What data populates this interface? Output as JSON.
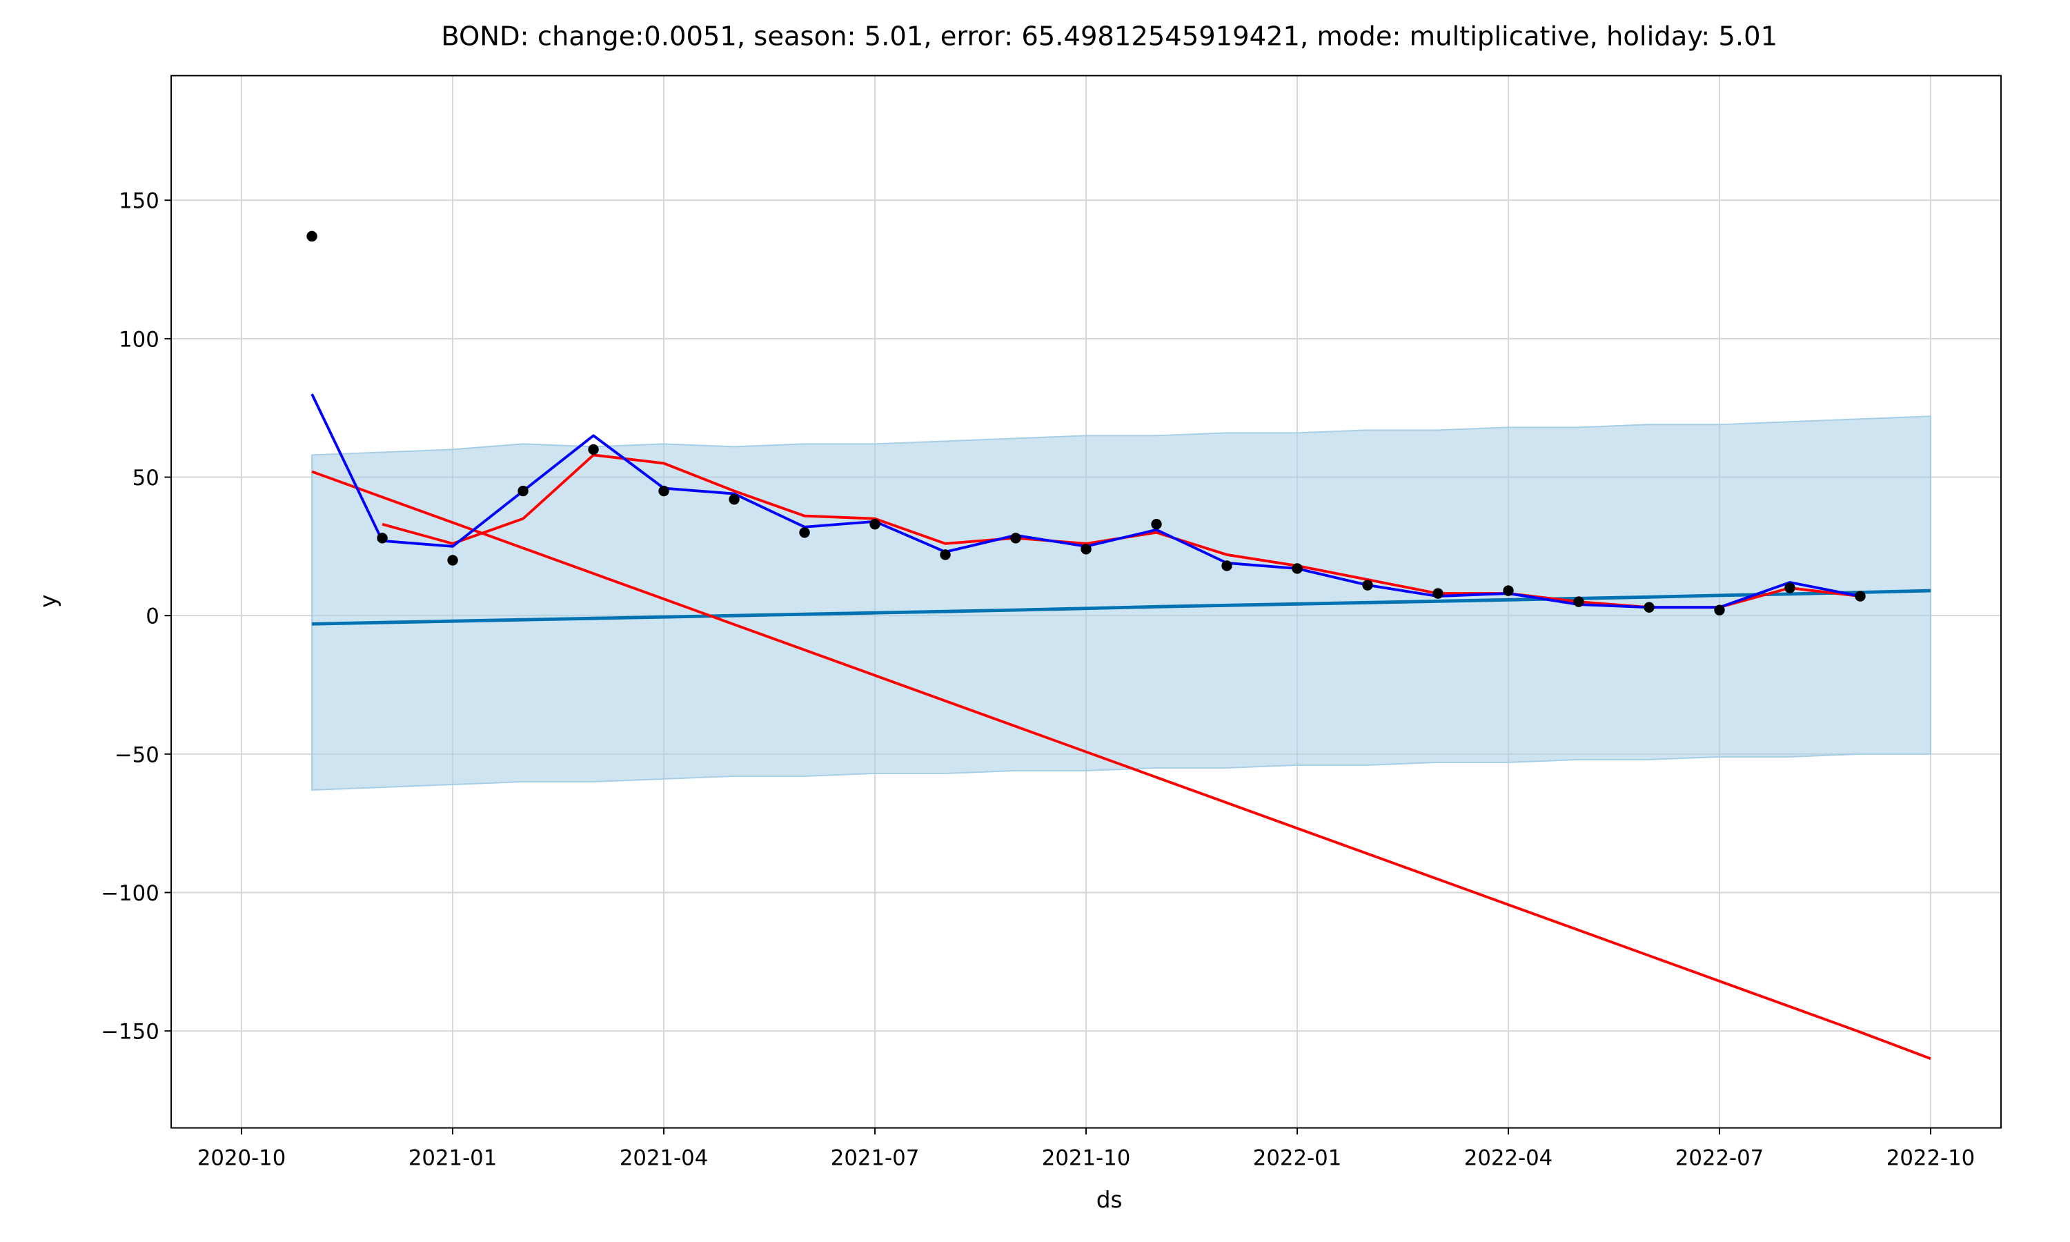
{
  "chart_data": {
    "type": "line",
    "title": "BOND: change:0.0051, season: 5.01, error: 65.49812545919421, mode: multiplicative, holiday: 5.01",
    "x_label": "ds",
    "y_label": "y",
    "grid": true,
    "xlim": [
      "2020-09",
      "2022-11"
    ],
    "xticks": [
      "2020-10",
      "2021-01",
      "2021-04",
      "2021-07",
      "2021-10",
      "2022-01",
      "2022-04",
      "2022-07",
      "2022-10"
    ],
    "ylim": [
      -185,
      195
    ],
    "yticks": [
      {
        "value": -150,
        "label": "−150"
      },
      {
        "value": -100,
        "label": "−100"
      },
      {
        "value": -50,
        "label": "−50"
      },
      0,
      50,
      100,
      150
    ],
    "x": [
      "2020-11",
      "2020-12",
      "2021-01",
      "2021-02",
      "2021-03",
      "2021-04",
      "2021-05",
      "2021-06",
      "2021-07",
      "2021-08",
      "2021-09",
      "2021-10",
      "2021-11",
      "2021-12",
      "2022-01",
      "2022-02",
      "2022-03",
      "2022-04",
      "2022-05",
      "2022-06",
      "2022-07",
      "2022-08",
      "2022-09",
      "2022-10"
    ],
    "series": [
      {
        "style": "band",
        "color": "#a6cde6",
        "upper": [
          58,
          59,
          60,
          62,
          61,
          62,
          61,
          62,
          62,
          63,
          64,
          65,
          65,
          66,
          66,
          67,
          67,
          68,
          68,
          69,
          69,
          70,
          71,
          72
        ],
        "lower": [
          -63,
          -62,
          -61,
          -60,
          -60,
          -59,
          -58,
          -58,
          -57,
          -57,
          -56,
          -56,
          -55,
          -55,
          -54,
          -54,
          -53,
          -53,
          -52,
          -52,
          -51,
          -51,
          -50,
          -50
        ]
      },
      {
        "style": "line",
        "color": "#0072b2",
        "width": 2.5,
        "values": [
          -3,
          -2.5,
          -2,
          -1.5,
          -1,
          -0.5,
          0,
          0.5,
          1,
          1.5,
          2,
          2.6,
          3.2,
          3.7,
          4.2,
          4.7,
          5.2,
          5.7,
          6.2,
          6.7,
          7.3,
          7.8,
          8.4,
          9
        ]
      },
      {
        "style": "line",
        "color": "#ff0000",
        "width": 2,
        "values": [
          52,
          42.8,
          33.6,
          24.4,
          15.2,
          6,
          -3.2,
          -12.4,
          -21.6,
          -30.8,
          -40,
          -49.2,
          -58.4,
          -67.6,
          -76.8,
          -86,
          -95.2,
          -104.4,
          -113.6,
          -122.8,
          -132,
          -141.2,
          -150.4,
          -160
        ]
      },
      {
        "style": "line",
        "color": "#ff0000",
        "width": 2,
        "values": [
          null,
          33,
          26,
          35,
          58,
          55,
          45,
          36,
          35,
          26,
          28,
          26,
          30,
          22,
          18,
          13,
          8,
          8,
          5,
          3,
          3,
          10,
          7,
          null
        ]
      },
      {
        "style": "line",
        "color": "#0000ff",
        "width": 2,
        "values": [
          80,
          27,
          25,
          45,
          65,
          46,
          44,
          32,
          34,
          23,
          29,
          25,
          31,
          19,
          17,
          11,
          7,
          8,
          4,
          3,
          3,
          12,
          7,
          null
        ]
      },
      {
        "style": "scatter",
        "color": "#000000",
        "values": [
          137,
          28,
          20,
          45,
          60,
          45,
          42,
          30,
          33,
          22,
          28,
          24,
          33,
          18,
          17,
          11,
          8,
          9,
          5,
          3,
          2,
          10,
          7,
          null
        ]
      }
    ]
  }
}
